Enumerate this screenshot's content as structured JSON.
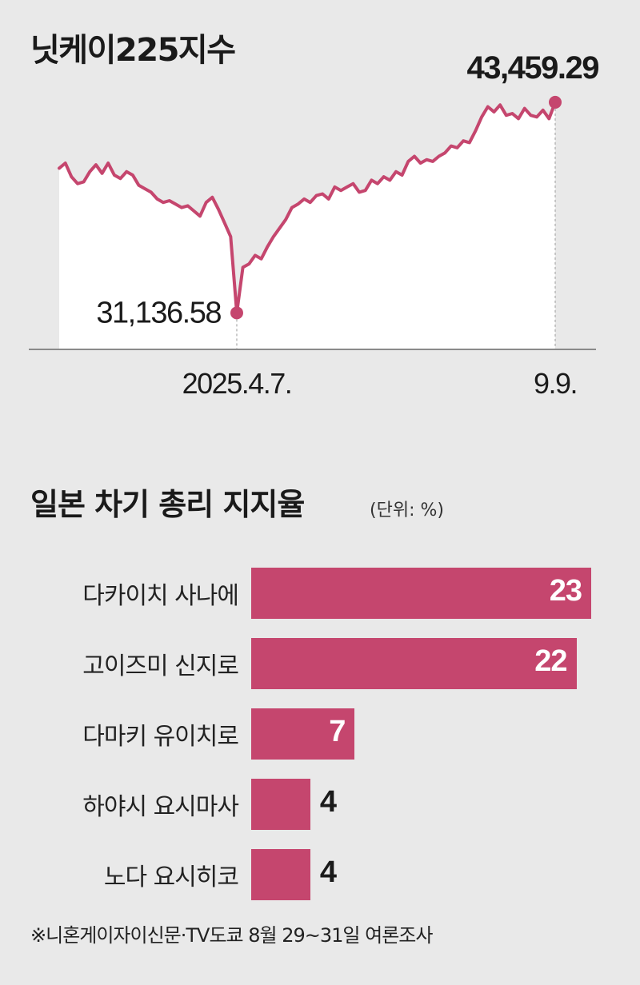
{
  "line_section": {
    "title": "닛케이225지수"
  },
  "bar_section": {
    "title": "일본 차기 총리 지지율",
    "unit": "(단위: %)"
  },
  "source": "※니혼게이자이신문·TV도쿄 8월 29~31일 여론조사",
  "colors": {
    "line": "#c5466e",
    "bar": "#c5466e",
    "background": "#e9e9e9",
    "plot_area": "#ffffff"
  },
  "chart_data": [
    {
      "type": "line",
      "title": "닛케이225지수",
      "x_labels": [
        "2025.4.7.",
        "9.9."
      ],
      "annotations": [
        {
          "label": "31,136.58",
          "value": 31136.58,
          "date": "2025.4.7."
        },
        {
          "label": "43,459.29",
          "value": 43459.29,
          "date": "9.9."
        }
      ],
      "ylim": [
        29000,
        45000
      ],
      "series": [
        {
          "values": [
            39600,
            39900,
            39100,
            38700,
            38800,
            39400,
            39800,
            39300,
            39900,
            39200,
            39000,
            39400,
            39200,
            38600,
            38400,
            38200,
            37800,
            37600,
            37700,
            37500,
            37300,
            37400,
            37100,
            36800,
            37600,
            37900,
            37200,
            36400,
            35600,
            31136.58,
            33800,
            34000,
            34500,
            34300,
            35000,
            35600,
            36100,
            36600,
            37300,
            37500,
            37800,
            37600,
            38000,
            38100,
            37800,
            38500,
            38300,
            38500,
            38700,
            38200,
            38300,
            38900,
            38700,
            39100,
            38900,
            39400,
            39200,
            40000,
            40300,
            39900,
            40100,
            40000,
            40300,
            40500,
            40900,
            40800,
            41200,
            41100,
            41800,
            42600,
            43200,
            42900,
            43300,
            42700,
            42800,
            42500,
            43100,
            42700,
            42600,
            43000,
            42500,
            43459.29
          ]
        }
      ]
    },
    {
      "type": "bar",
      "title": "일본 차기 총리 지지율",
      "unit": "(단위: %)",
      "categories": [
        "다카이치 사나에",
        "고이즈미 신지로",
        "다마키 유이치로",
        "하야시 요시마사",
        "노다 요시히코"
      ],
      "values": [
        23,
        22,
        7,
        4,
        4
      ]
    }
  ]
}
